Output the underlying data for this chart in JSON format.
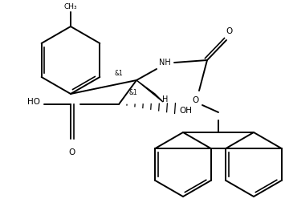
{
  "bg": "#ffffff",
  "lc": "#000000",
  "lw": 1.4,
  "fw": 3.55,
  "fh": 2.68,
  "dpi": 100,
  "xlim": [
    0,
    355
  ],
  "ylim": [
    0,
    268
  ]
}
